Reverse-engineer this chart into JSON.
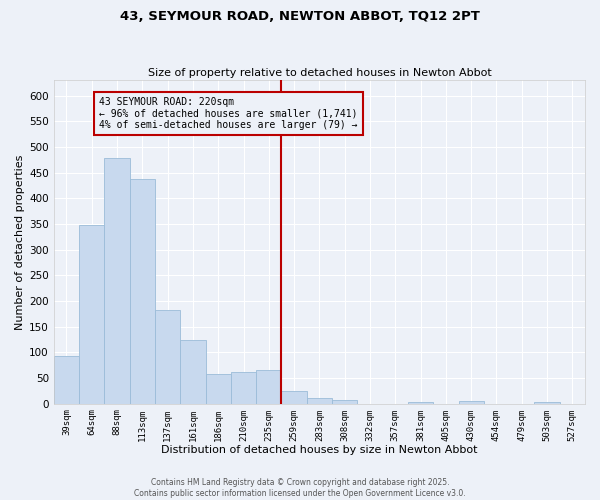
{
  "title_line1": "43, SEYMOUR ROAD, NEWTON ABBOT, TQ12 2PT",
  "title_line2": "Size of property relative to detached houses in Newton Abbot",
  "xlabel": "Distribution of detached houses by size in Newton Abbot",
  "ylabel": "Number of detached properties",
  "categories": [
    "39sqm",
    "64sqm",
    "88sqm",
    "113sqm",
    "137sqm",
    "161sqm",
    "186sqm",
    "210sqm",
    "235sqm",
    "259sqm",
    "283sqm",
    "308sqm",
    "332sqm",
    "357sqm",
    "381sqm",
    "405sqm",
    "430sqm",
    "454sqm",
    "479sqm",
    "503sqm",
    "527sqm"
  ],
  "values": [
    93,
    348,
    479,
    437,
    183,
    125,
    57,
    62,
    65,
    24,
    12,
    8,
    0,
    0,
    3,
    0,
    6,
    0,
    0,
    4,
    0
  ],
  "bar_color": "#c8d9ee",
  "bar_edge_color": "#9bbcd8",
  "background_color": "#edf1f8",
  "grid_color": "#ffffff",
  "vline_x": 8.5,
  "vline_color": "#bb0000",
  "annotation_text": "43 SEYMOUR ROAD: 220sqm\n← 96% of detached houses are smaller (1,741)\n4% of semi-detached houses are larger (79) →",
  "annotation_box_color": "#bb0000",
  "footer_line1": "Contains HM Land Registry data © Crown copyright and database right 2025.",
  "footer_line2": "Contains public sector information licensed under the Open Government Licence v3.0.",
  "ylim": [
    0,
    630
  ],
  "yticks": [
    0,
    50,
    100,
    150,
    200,
    250,
    300,
    350,
    400,
    450,
    500,
    550,
    600
  ]
}
